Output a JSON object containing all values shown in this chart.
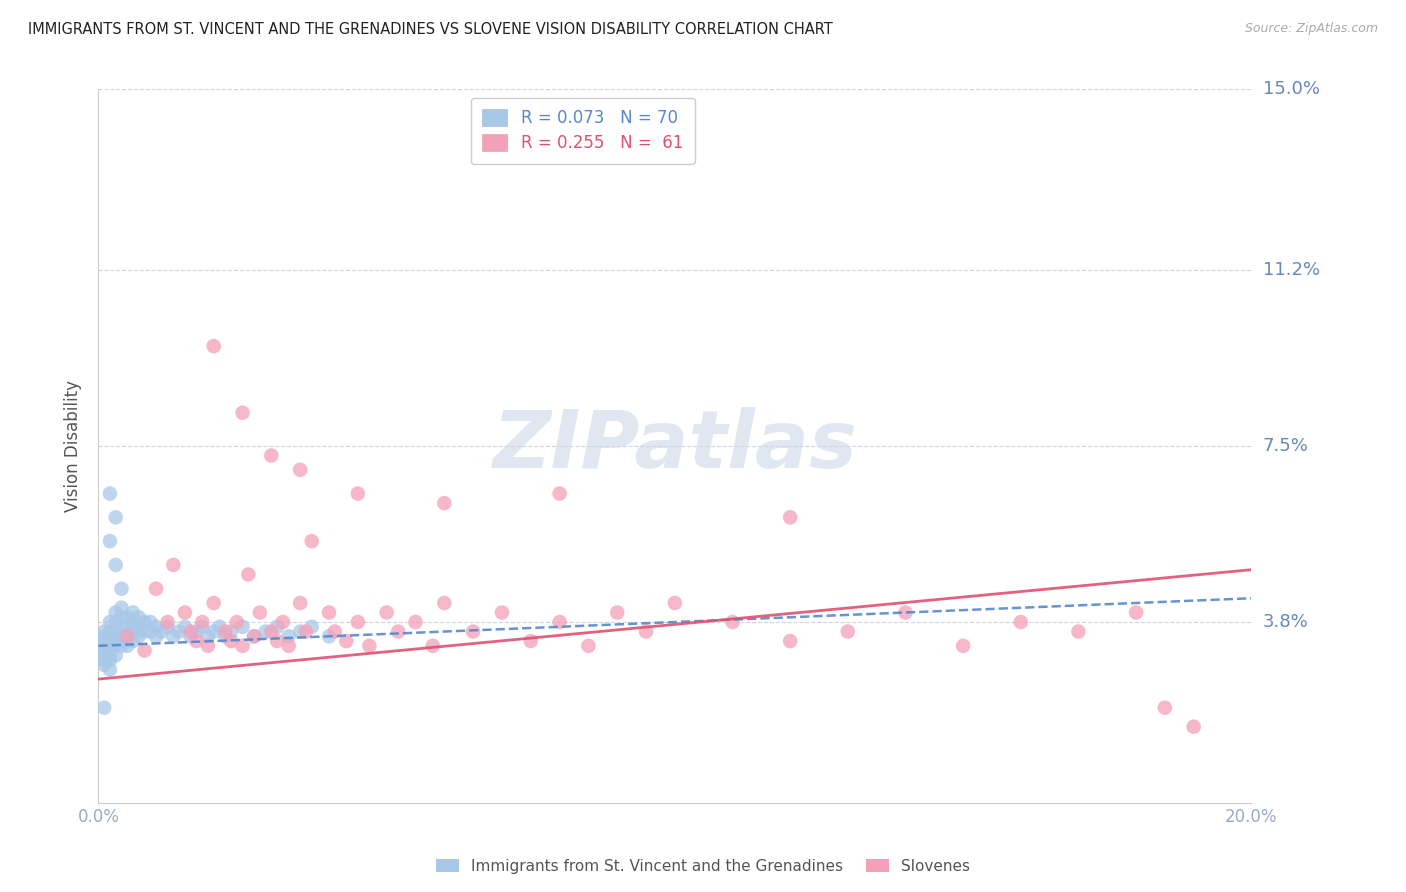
{
  "title": "IMMIGRANTS FROM ST. VINCENT AND THE GRENADINES VS SLOVENE VISION DISABILITY CORRELATION CHART",
  "source": "Source: ZipAtlas.com",
  "xlabel_blue": "Immigrants from St. Vincent and the Grenadines",
  "xlabel_pink": "Slovenes",
  "ylabel": "Vision Disability",
  "xlim": [
    0.0,
    0.2
  ],
  "ylim": [
    0.0,
    0.15
  ],
  "ytick_vals": [
    0.038,
    0.075,
    0.112,
    0.15
  ],
  "ytick_labels": [
    "3.8%",
    "7.5%",
    "11.2%",
    "15.0%"
  ],
  "blue_R": 0.073,
  "blue_N": 70,
  "pink_R": 0.255,
  "pink_N": 61,
  "blue_color": "#a8c8e8",
  "pink_color": "#f4a0b8",
  "blue_line_color": "#5588cc",
  "pink_line_color": "#e05070",
  "axis_color": "#99aacc",
  "title_color": "#222222",
  "right_label_color": "#6688bb",
  "watermark_color": "#ccd8e8",
  "blue_scatter_x": [
    0.001,
    0.001,
    0.001,
    0.001,
    0.001,
    0.001,
    0.001,
    0.001,
    0.002,
    0.002,
    0.002,
    0.002,
    0.002,
    0.002,
    0.002,
    0.003,
    0.003,
    0.003,
    0.003,
    0.003,
    0.003,
    0.004,
    0.004,
    0.004,
    0.004,
    0.004,
    0.005,
    0.005,
    0.005,
    0.005,
    0.006,
    0.006,
    0.006,
    0.006,
    0.007,
    0.007,
    0.007,
    0.008,
    0.008,
    0.009,
    0.009,
    0.01,
    0.01,
    0.011,
    0.012,
    0.013,
    0.014,
    0.015,
    0.016,
    0.017,
    0.018,
    0.019,
    0.02,
    0.021,
    0.022,
    0.023,
    0.025,
    0.027,
    0.029,
    0.031,
    0.033,
    0.035,
    0.037,
    0.04,
    0.002,
    0.003,
    0.004,
    0.002,
    0.003,
    0.001
  ],
  "blue_scatter_y": [
    0.035,
    0.033,
    0.032,
    0.036,
    0.034,
    0.031,
    0.03,
    0.029,
    0.038,
    0.036,
    0.034,
    0.033,
    0.031,
    0.03,
    0.028,
    0.04,
    0.038,
    0.036,
    0.034,
    0.033,
    0.031,
    0.041,
    0.039,
    0.037,
    0.035,
    0.033,
    0.039,
    0.037,
    0.035,
    0.033,
    0.04,
    0.038,
    0.036,
    0.034,
    0.039,
    0.037,
    0.035,
    0.038,
    0.036,
    0.038,
    0.036,
    0.037,
    0.035,
    0.036,
    0.037,
    0.035,
    0.036,
    0.037,
    0.035,
    0.036,
    0.037,
    0.035,
    0.036,
    0.037,
    0.035,
    0.036,
    0.037,
    0.035,
    0.036,
    0.037,
    0.035,
    0.036,
    0.037,
    0.035,
    0.055,
    0.05,
    0.045,
    0.065,
    0.06,
    0.02
  ],
  "pink_scatter_x": [
    0.005,
    0.008,
    0.01,
    0.012,
    0.013,
    0.015,
    0.016,
    0.017,
    0.018,
    0.019,
    0.02,
    0.022,
    0.023,
    0.024,
    0.025,
    0.026,
    0.027,
    0.028,
    0.03,
    0.031,
    0.032,
    0.033,
    0.035,
    0.036,
    0.037,
    0.04,
    0.041,
    0.043,
    0.045,
    0.047,
    0.05,
    0.052,
    0.055,
    0.058,
    0.06,
    0.065,
    0.07,
    0.075,
    0.08,
    0.085,
    0.09,
    0.095,
    0.1,
    0.11,
    0.12,
    0.13,
    0.14,
    0.15,
    0.16,
    0.17,
    0.18,
    0.19,
    0.02,
    0.025,
    0.03,
    0.035,
    0.045,
    0.06,
    0.08,
    0.12,
    0.185
  ],
  "pink_scatter_y": [
    0.035,
    0.032,
    0.045,
    0.038,
    0.05,
    0.04,
    0.036,
    0.034,
    0.038,
    0.033,
    0.042,
    0.036,
    0.034,
    0.038,
    0.033,
    0.048,
    0.035,
    0.04,
    0.036,
    0.034,
    0.038,
    0.033,
    0.042,
    0.036,
    0.055,
    0.04,
    0.036,
    0.034,
    0.038,
    0.033,
    0.04,
    0.036,
    0.038,
    0.033,
    0.042,
    0.036,
    0.04,
    0.034,
    0.038,
    0.033,
    0.04,
    0.036,
    0.042,
    0.038,
    0.034,
    0.036,
    0.04,
    0.033,
    0.038,
    0.036,
    0.04,
    0.016,
    0.096,
    0.082,
    0.073,
    0.07,
    0.065,
    0.063,
    0.065,
    0.06,
    0.02
  ]
}
